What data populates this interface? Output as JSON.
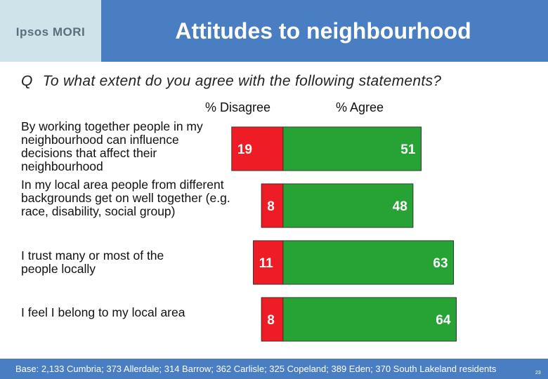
{
  "header": {
    "logo_text": "Ipsos MORI",
    "title": "Attitudes to neighbourhood"
  },
  "question": {
    "prefix": "Q",
    "text": "To what extent do you agree with the following statements?"
  },
  "colors": {
    "header_bg": "#4a7ec2",
    "logo_bg": "#cfe4ea",
    "disagree": "#ee1c24",
    "agree": "#27a234"
  },
  "chart_data": {
    "type": "bar",
    "orientation": "horizontal",
    "stacked": "diverging",
    "column_headers": [
      "% Disagree",
      "% Agree"
    ],
    "categories": [
      "By working together people in my neighbourhood can influence decisions that affect their neighbourhood",
      "In my local area people from different backgrounds get on well together (e.g. race, disability, social group)",
      "I trust many or most of the people locally",
      "I feel I belong to my local area"
    ],
    "series": [
      {
        "name": "% Disagree",
        "values": [
          19,
          8,
          11,
          8
        ]
      },
      {
        "name": "% Agree",
        "values": [
          51,
          48,
          63,
          64
        ]
      }
    ]
  },
  "footer": {
    "base_note": "Base: 2,133 Cumbria; 373 Allerdale; 314 Barrow; 362 Carlisle; 325 Copeland; 389 Eden; 370 South Lakeland residents",
    "page_number": "23"
  }
}
